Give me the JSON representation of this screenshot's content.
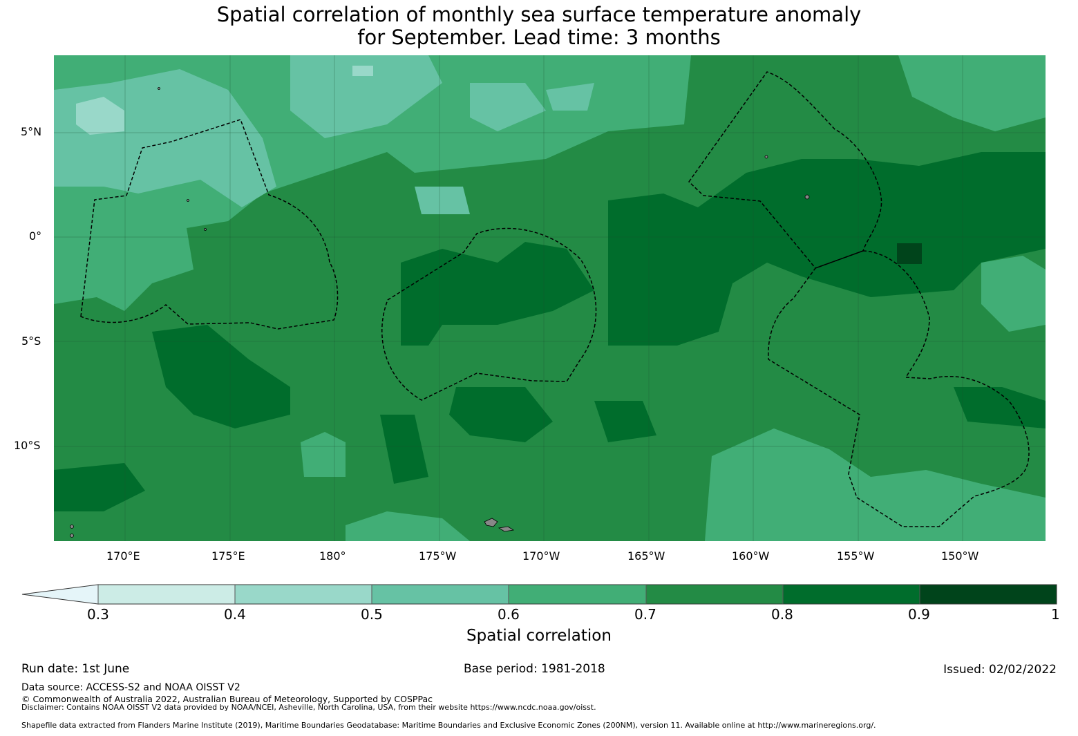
{
  "title": {
    "line1": "Spatial correlation of monthly sea surface temperature anomaly",
    "line2": "for September. Lead time: 3 months"
  },
  "map": {
    "lat_labels": [
      "5°N",
      "0°",
      "5°S",
      "10°S"
    ],
    "lon_labels": [
      "170°E",
      "175°E",
      "180°",
      "175°W",
      "170°W",
      "165°W",
      "160°W",
      "155°W",
      "150°W"
    ],
    "lat_values": [
      5,
      0,
      -5,
      -10
    ],
    "lon_values": [
      170,
      175,
      180,
      185,
      190,
      195,
      200,
      205,
      210
    ],
    "extent": {
      "lon_min": 166.6,
      "lon_max": 213.9,
      "lat_min": -14.6,
      "lat_max": 8.6
    },
    "gridlines": true,
    "boundary_style": "dashed",
    "eez_zones": [
      "western",
      "central",
      "eastern-north",
      "eastern-south"
    ]
  },
  "colorbar": {
    "label": "Spatial correlation",
    "ticks": [
      "0.3",
      "0.4",
      "0.5",
      "0.6",
      "0.7",
      "0.8",
      "0.9",
      "1"
    ],
    "extend": "min",
    "colors": [
      "#e5f5f9",
      "#ccece6",
      "#99d8c9",
      "#66c2a4",
      "#41ae76",
      "#238b45",
      "#006d2c",
      "#00441b"
    ]
  },
  "footer": {
    "run_date": "Run date: 1st June",
    "base_period": "Base period: 1981-2018",
    "issued": "Issued: 02/02/2022",
    "data_source": "Data source: ACCESS-S2 and NOAA OISST V2",
    "copyright": "© Commonwealth of Australia 2022, Australian Bureau of Meteorology, Supported by COSPPac",
    "disclaimer": "Disclaimer: Contains NOAA OISST V2 data provided by NOAA/NCEI, Asheville, North Carolina, USA, from their website https://www.ncdc.noaa.gov/oisst.",
    "shapefile": "Shapefile data extracted from Flanders Marine Institute (2019), Maritime Boundaries Geodatabase: Maritime Boundaries and Exclusive Economic Zones (200NM), version 11. Available online at http://www.marineregions.org/."
  }
}
